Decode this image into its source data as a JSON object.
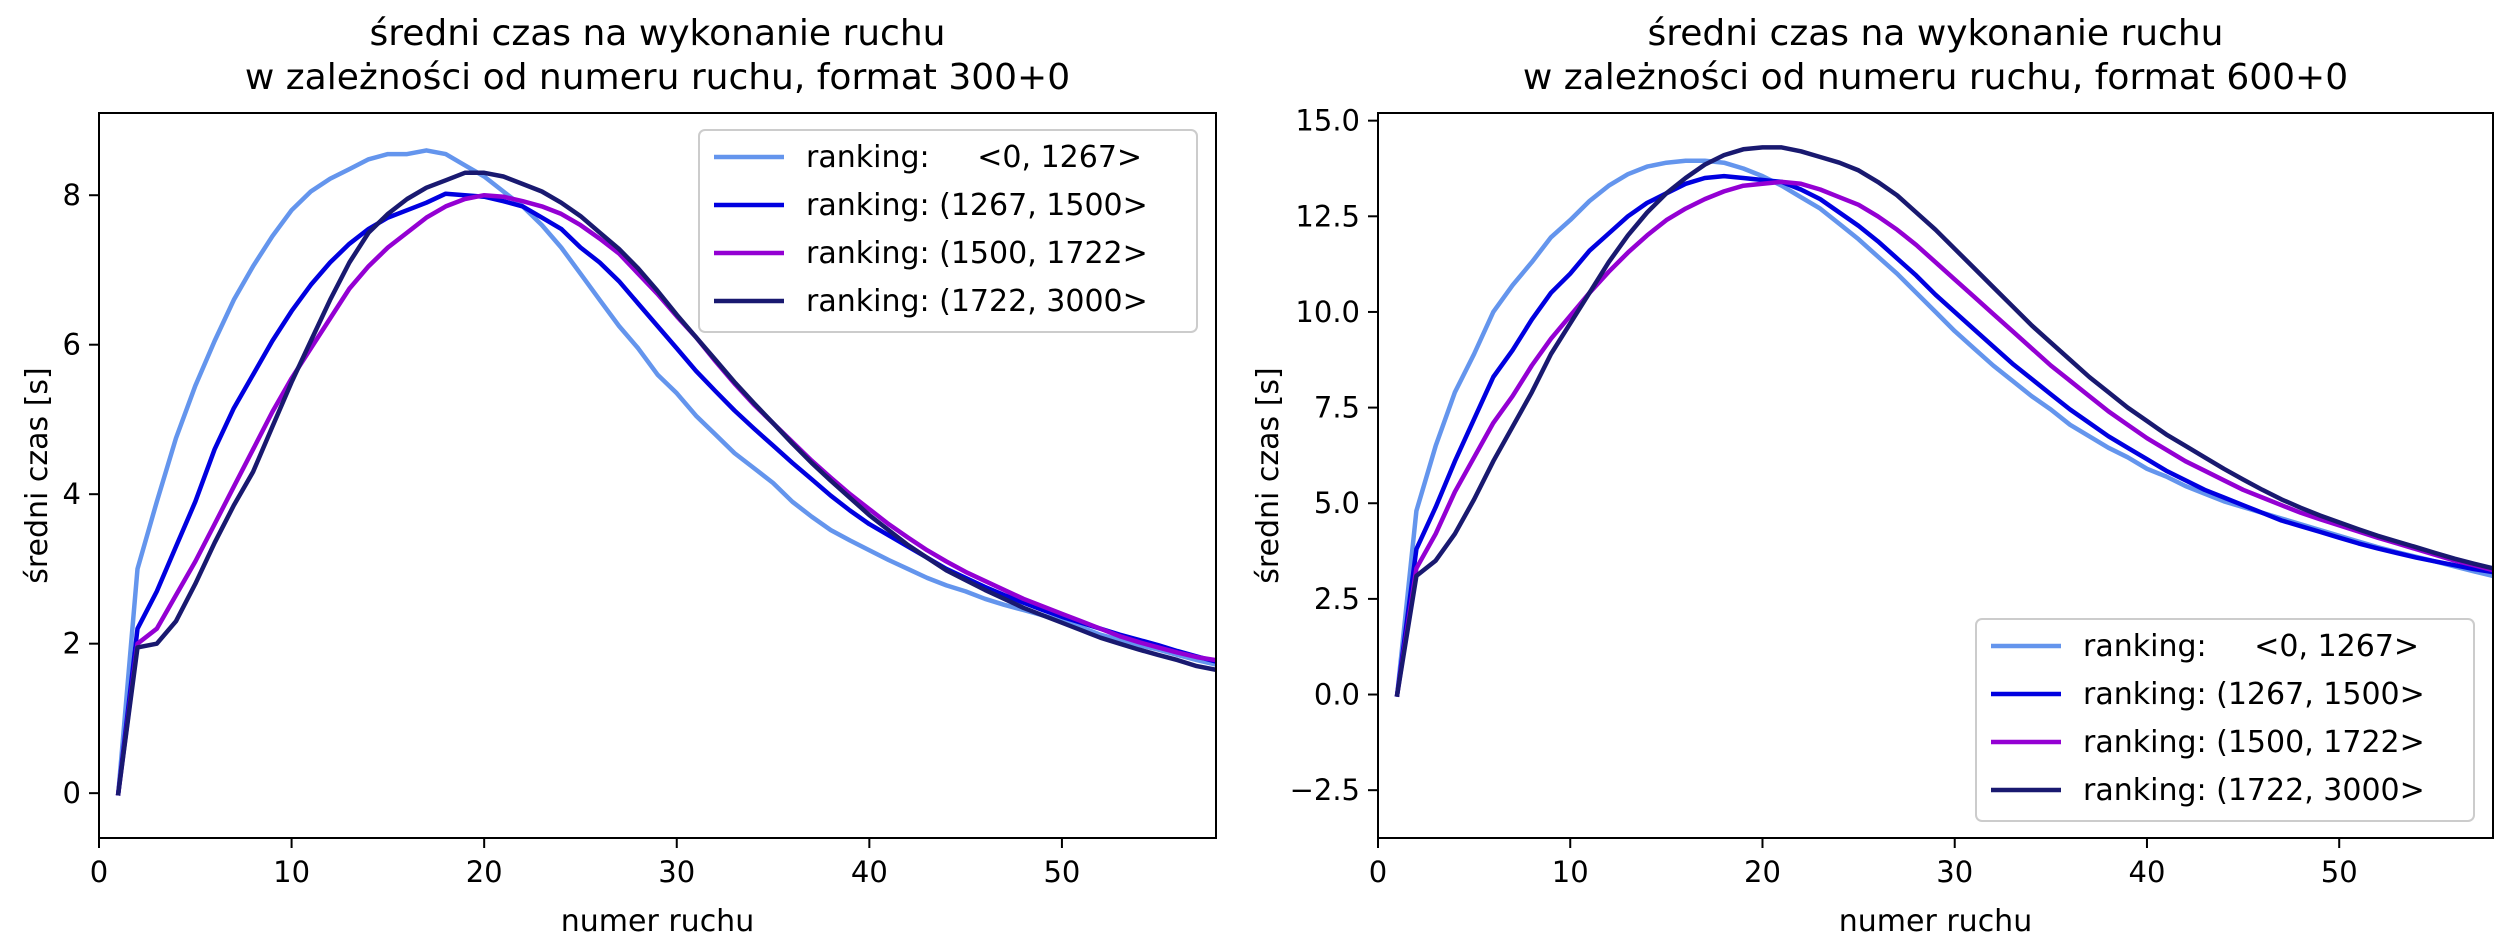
{
  "chart_data": [
    {
      "type": "line",
      "title": "średni czas na wykonanie ruchu\nw zależności od numeru ruchu, format 300+0",
      "xlabel": "numer ruchu",
      "ylabel": "średni czas [s]",
      "xlim": [
        0,
        58
      ],
      "ylim": [
        -0.6,
        9.1
      ],
      "xticks": [
        0,
        10,
        20,
        30,
        40,
        50
      ],
      "yticks": [
        0,
        2,
        4,
        6,
        8
      ],
      "grid": false,
      "legend_position": "upper right",
      "x_start": 1,
      "series": [
        {
          "name": "ranking:     <0, 1267>",
          "color": "#6495ED",
          "values": [
            0.0,
            3.0,
            3.9,
            4.75,
            5.45,
            6.05,
            6.6,
            7.05,
            7.45,
            7.8,
            8.05,
            8.22,
            8.35,
            8.48,
            8.55,
            8.55,
            8.6,
            8.55,
            8.4,
            8.25,
            8.05,
            7.85,
            7.6,
            7.3,
            6.95,
            6.6,
            6.25,
            5.95,
            5.6,
            5.35,
            5.05,
            4.8,
            4.55,
            4.35,
            4.15,
            3.9,
            3.7,
            3.52,
            3.38,
            3.25,
            3.12,
            3.0,
            2.88,
            2.78,
            2.7,
            2.6,
            2.52,
            2.45,
            2.38,
            2.3,
            2.22,
            2.12,
            2.05,
            1.98,
            1.92,
            1.85,
            1.78,
            1.72
          ]
        },
        {
          "name": "ranking: (1267, 1500>",
          "color": "#0000E0",
          "values": [
            0.0,
            2.2,
            2.7,
            3.3,
            3.9,
            4.6,
            5.15,
            5.6,
            6.05,
            6.45,
            6.8,
            7.1,
            7.35,
            7.55,
            7.7,
            7.8,
            7.9,
            8.02,
            8.0,
            7.98,
            7.92,
            7.85,
            7.7,
            7.55,
            7.3,
            7.1,
            6.85,
            6.55,
            6.25,
            5.95,
            5.65,
            5.38,
            5.12,
            4.88,
            4.65,
            4.42,
            4.2,
            3.98,
            3.78,
            3.6,
            3.45,
            3.3,
            3.15,
            3.0,
            2.88,
            2.76,
            2.65,
            2.55,
            2.45,
            2.36,
            2.28,
            2.2,
            2.12,
            2.05,
            1.98,
            1.9,
            1.83,
            1.76
          ]
        },
        {
          "name": "ranking: (1500, 1722>",
          "color": "#9400D3",
          "values": [
            0.0,
            2.0,
            2.2,
            2.65,
            3.1,
            3.6,
            4.1,
            4.6,
            5.1,
            5.55,
            5.95,
            6.35,
            6.75,
            7.05,
            7.3,
            7.5,
            7.7,
            7.85,
            7.95,
            8.0,
            7.98,
            7.92,
            7.85,
            7.75,
            7.6,
            7.42,
            7.22,
            6.95,
            6.68,
            6.38,
            6.1,
            5.78,
            5.48,
            5.2,
            4.95,
            4.7,
            4.45,
            4.22,
            4.0,
            3.8,
            3.6,
            3.42,
            3.25,
            3.1,
            2.96,
            2.84,
            2.72,
            2.6,
            2.5,
            2.4,
            2.3,
            2.2,
            2.1,
            2.02,
            1.95,
            1.88,
            1.82,
            1.78
          ]
        },
        {
          "name": "ranking: (1722, 3000>",
          "color": "#191970",
          "values": [
            0.0,
            1.95,
            2.0,
            2.3,
            2.8,
            3.35,
            3.85,
            4.3,
            4.9,
            5.5,
            6.05,
            6.6,
            7.1,
            7.5,
            7.75,
            7.95,
            8.1,
            8.2,
            8.3,
            8.3,
            8.25,
            8.15,
            8.05,
            7.9,
            7.72,
            7.5,
            7.28,
            7.02,
            6.72,
            6.4,
            6.1,
            5.8,
            5.5,
            5.22,
            4.95,
            4.68,
            4.42,
            4.18,
            3.95,
            3.72,
            3.52,
            3.32,
            3.15,
            2.98,
            2.85,
            2.72,
            2.6,
            2.48,
            2.38,
            2.28,
            2.18,
            2.08,
            2.0,
            1.92,
            1.85,
            1.78,
            1.7,
            1.65
          ]
        }
      ]
    },
    {
      "type": "line",
      "title": "średni czas na wykonanie ruchu\nw zależności od numeru ruchu, format 600+0",
      "xlabel": "numer ruchu",
      "ylabel": "średni czas [s]",
      "xlim": [
        0,
        58
      ],
      "ylim": [
        -3.75,
        15.2
      ],
      "xticks": [
        0,
        10,
        20,
        30,
        40,
        50
      ],
      "yticks": [
        -2.5,
        0.0,
        2.5,
        5.0,
        7.5,
        10.0,
        12.5,
        15.0
      ],
      "grid": false,
      "legend_position": "lower right",
      "x_start": 1,
      "series": [
        {
          "name": "ranking:     <0, 1267>",
          "color": "#6495ED",
          "values": [
            0.0,
            4.8,
            6.5,
            7.9,
            8.9,
            10.0,
            10.7,
            11.3,
            11.95,
            12.4,
            12.9,
            13.3,
            13.6,
            13.8,
            13.9,
            13.95,
            13.95,
            13.9,
            13.75,
            13.55,
            13.3,
            13.0,
            12.7,
            12.3,
            11.9,
            11.45,
            11.0,
            10.5,
            10.0,
            9.5,
            9.05,
            8.6,
            8.2,
            7.8,
            7.45,
            7.05,
            6.75,
            6.45,
            6.2,
            5.9,
            5.7,
            5.45,
            5.25,
            5.05,
            4.9,
            4.75,
            4.6,
            4.45,
            4.3,
            4.15,
            4.0,
            3.85,
            3.72,
            3.6,
            3.48,
            3.35,
            3.22,
            3.1
          ]
        },
        {
          "name": "ranking: (1267, 1500>",
          "color": "#0000E0",
          "values": [
            0.0,
            3.8,
            4.9,
            6.1,
            7.2,
            8.3,
            9.0,
            9.8,
            10.5,
            11.0,
            11.6,
            12.05,
            12.5,
            12.85,
            13.1,
            13.35,
            13.5,
            13.55,
            13.5,
            13.45,
            13.4,
            13.2,
            12.95,
            12.6,
            12.25,
            11.85,
            11.4,
            10.95,
            10.45,
            10.0,
            9.55,
            9.1,
            8.65,
            8.25,
            7.85,
            7.45,
            7.1,
            6.75,
            6.45,
            6.15,
            5.85,
            5.6,
            5.35,
            5.15,
            4.95,
            4.75,
            4.55,
            4.4,
            4.25,
            4.1,
            3.95,
            3.82,
            3.7,
            3.58,
            3.48,
            3.38,
            3.28,
            3.2
          ]
        },
        {
          "name": "ranking: (1500, 1722>",
          "color": "#9400D3",
          "values": [
            0.0,
            3.3,
            4.2,
            5.3,
            6.2,
            7.1,
            7.8,
            8.6,
            9.3,
            9.9,
            10.5,
            11.05,
            11.55,
            12.0,
            12.4,
            12.7,
            12.95,
            13.15,
            13.3,
            13.35,
            13.4,
            13.35,
            13.2,
            13.0,
            12.8,
            12.5,
            12.15,
            11.75,
            11.3,
            10.85,
            10.4,
            9.95,
            9.5,
            9.05,
            8.6,
            8.2,
            7.8,
            7.4,
            7.05,
            6.7,
            6.4,
            6.1,
            5.85,
            5.6,
            5.35,
            5.15,
            4.95,
            4.75,
            4.58,
            4.42,
            4.26,
            4.1,
            3.95,
            3.8,
            3.65,
            3.5,
            3.38,
            3.25
          ]
        },
        {
          "name": "ranking: (1722, 3000>",
          "color": "#191970",
          "values": [
            0.0,
            3.1,
            3.5,
            4.2,
            5.1,
            6.1,
            7.0,
            7.9,
            8.9,
            9.7,
            10.5,
            11.3,
            12.0,
            12.6,
            13.1,
            13.5,
            13.85,
            14.1,
            14.25,
            14.3,
            14.3,
            14.2,
            14.05,
            13.9,
            13.7,
            13.4,
            13.05,
            12.6,
            12.15,
            11.65,
            11.15,
            10.65,
            10.15,
            9.65,
            9.2,
            8.75,
            8.3,
            7.9,
            7.5,
            7.15,
            6.8,
            6.5,
            6.2,
            5.9,
            5.62,
            5.35,
            5.1,
            4.88,
            4.68,
            4.5,
            4.32,
            4.15,
            4.0,
            3.85,
            3.7,
            3.55,
            3.42,
            3.3
          ]
        }
      ]
    }
  ]
}
